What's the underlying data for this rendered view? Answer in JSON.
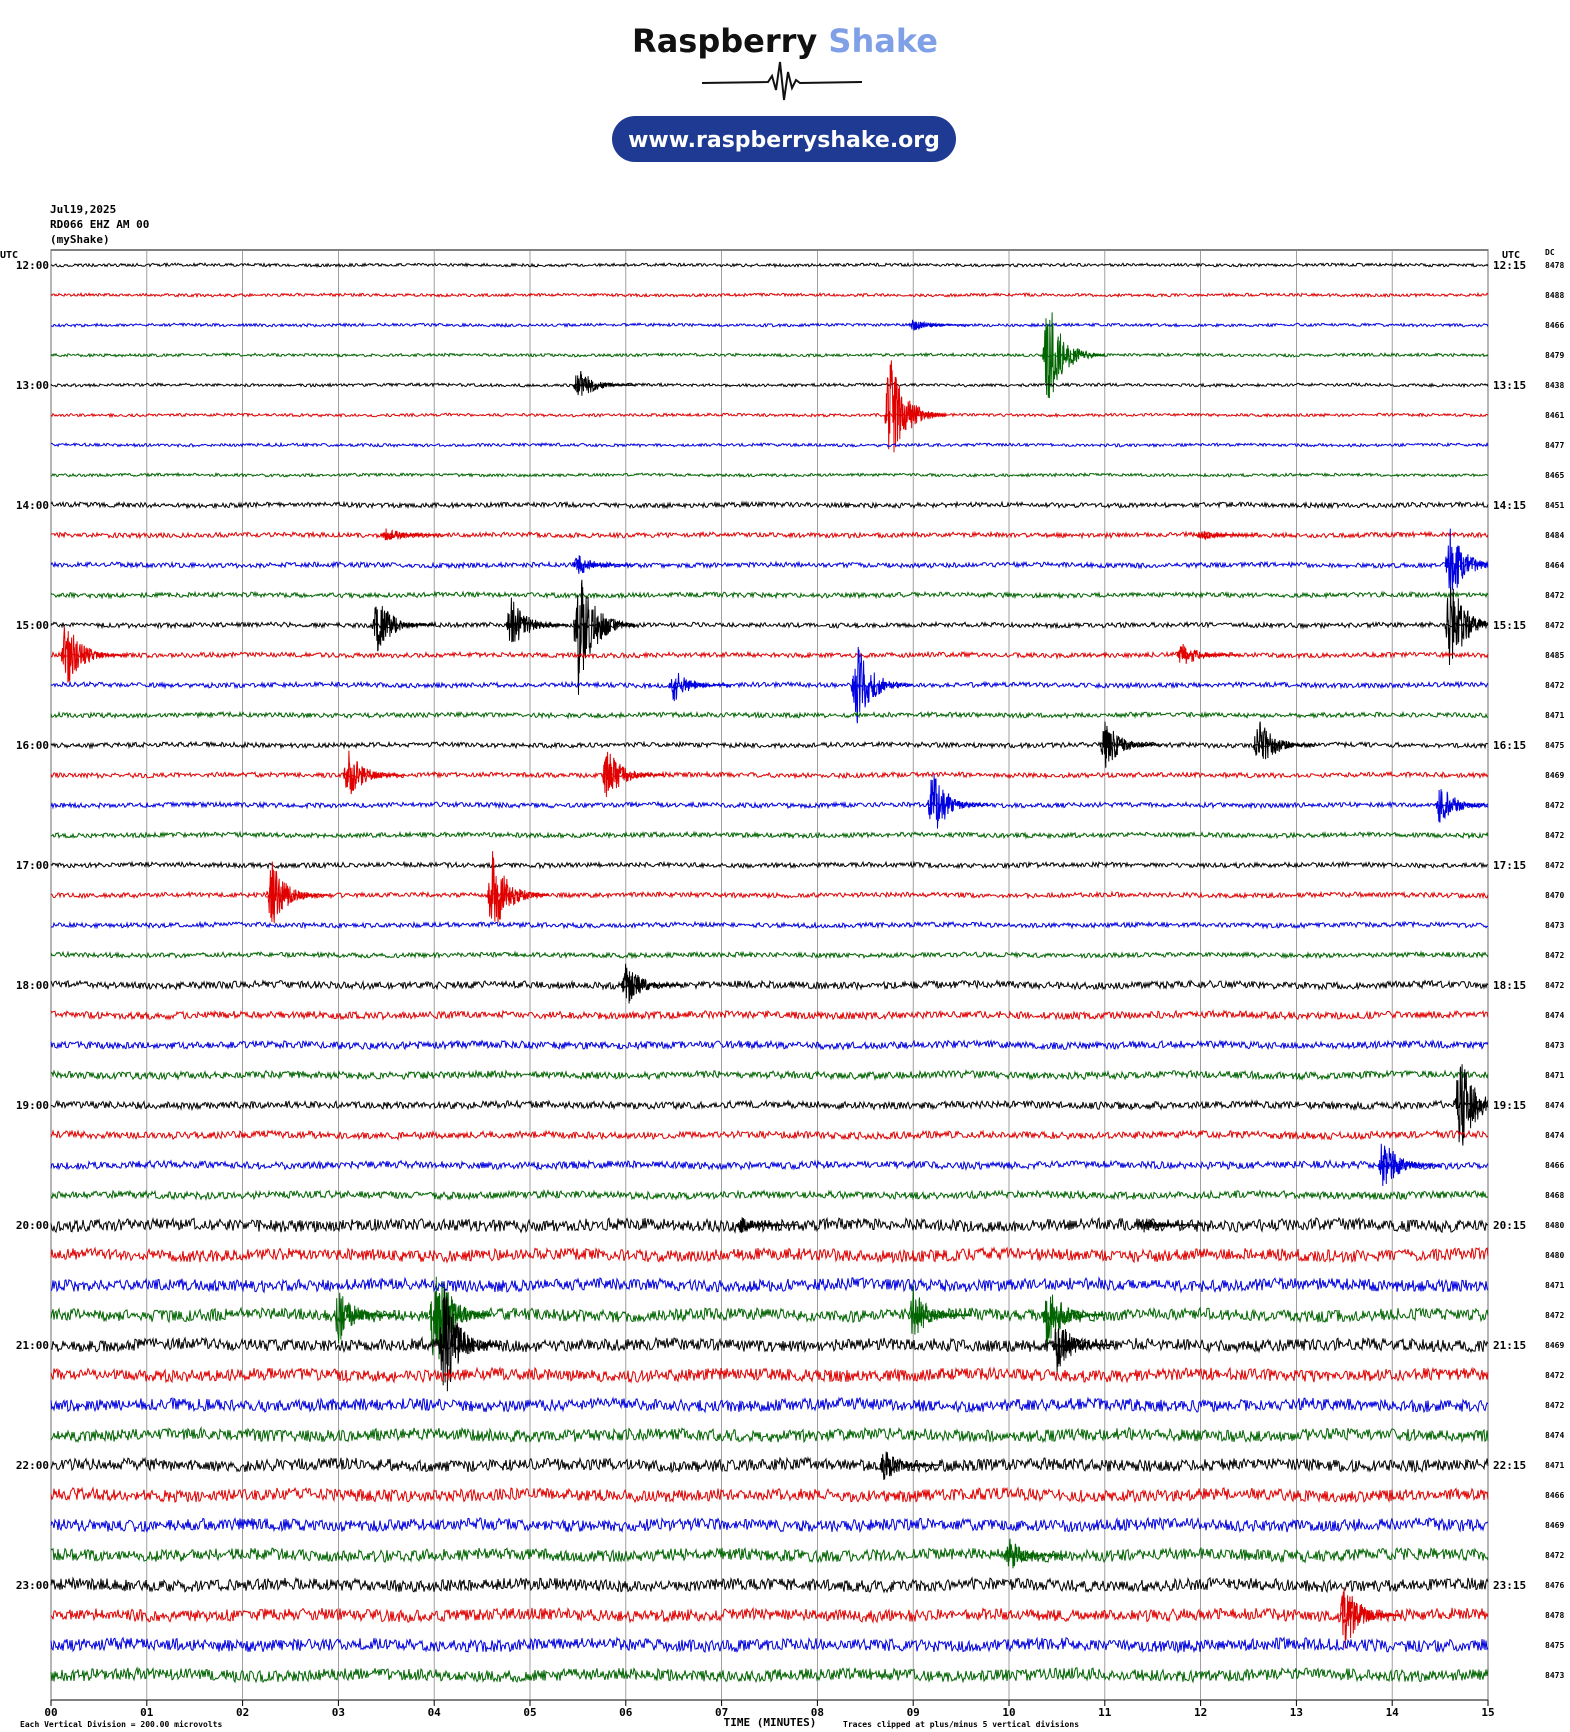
{
  "header": {
    "logo_1": "Raspberry",
    "logo_2": "Shake",
    "url": "www.raspberryshake.org"
  },
  "chart_data": {
    "type": "helicorder",
    "date": "Jul19,2025",
    "station": "RD066 EHZ AM 00",
    "source": "(myShake)",
    "left_axis_label": "UTC",
    "right_axis_label": "UTC",
    "dc_label": "DC",
    "x_label": "TIME (MINUTES)",
    "scale_note": "Each Vertical Division =  200.00 microvolts",
    "clip_note": "Traces clipped at plus/minus 5 vertical divisions",
    "xlim": [
      0,
      15
    ],
    "xticks": [
      {
        "value": 0,
        "label": "00"
      },
      {
        "value": 1,
        "label": "01"
      },
      {
        "value": 2,
        "label": "02"
      },
      {
        "value": 3,
        "label": "03"
      },
      {
        "value": 4,
        "label": "04"
      },
      {
        "value": 5,
        "label": "05"
      },
      {
        "value": 6,
        "label": "06"
      },
      {
        "value": 7,
        "label": "07"
      },
      {
        "value": 8,
        "label": "08"
      },
      {
        "value": 9,
        "label": "09"
      },
      10,
      11,
      12,
      13,
      14,
      15
    ],
    "colors": [
      "#000000",
      "#e00000",
      "#0000e0",
      "#006400"
    ],
    "rows": [
      {
        "left": "12:00",
        "right": "12:15",
        "dc": 8478,
        "noise": 0.05,
        "events": []
      },
      {
        "left": null,
        "right": null,
        "dc": 8488,
        "noise": 0.05,
        "events": []
      },
      {
        "left": null,
        "right": null,
        "dc": 8466,
        "noise": 0.05,
        "events": [
          [
            9.0,
            0.2
          ]
        ]
      },
      {
        "left": null,
        "right": null,
        "dc": 8479,
        "noise": 0.05,
        "events": [
          [
            10.4,
            2
          ]
        ]
      },
      {
        "left": "13:00",
        "right": "13:15",
        "dc": 8438,
        "noise": 0.05,
        "events": [
          [
            5.5,
            0.6
          ]
        ]
      },
      {
        "left": null,
        "right": null,
        "dc": 8461,
        "noise": 0.05,
        "events": [
          [
            8.75,
            2.2
          ]
        ]
      },
      {
        "left": null,
        "right": null,
        "dc": 8477,
        "noise": 0.05,
        "events": []
      },
      {
        "left": null,
        "right": null,
        "dc": 8465,
        "noise": 0.05,
        "events": []
      },
      {
        "left": "14:00",
        "right": "14:15",
        "dc": 8451,
        "noise": 0.08,
        "events": []
      },
      {
        "left": null,
        "right": null,
        "dc": 8484,
        "noise": 0.08,
        "events": [
          [
            3.5,
            0.3
          ],
          [
            12,
            0.2
          ]
        ]
      },
      {
        "left": null,
        "right": null,
        "dc": 8464,
        "noise": 0.08,
        "events": [
          [
            5.5,
            0.4
          ],
          [
            14.6,
            1.3
          ]
        ]
      },
      {
        "left": null,
        "right": null,
        "dc": 8472,
        "noise": 0.08,
        "events": []
      },
      {
        "left": "15:00",
        "right": "15:15",
        "dc": 8472,
        "noise": 0.08,
        "events": [
          [
            3.4,
            1
          ],
          [
            4.8,
            1
          ],
          [
            5.5,
            2.5
          ],
          [
            14.6,
            1.7
          ]
        ]
      },
      {
        "left": null,
        "right": null,
        "dc": 8485,
        "noise": 0.08,
        "events": [
          [
            0.15,
            1.2
          ],
          [
            11.8,
            0.5
          ]
        ]
      },
      {
        "left": null,
        "right": null,
        "dc": 8472,
        "noise": 0.08,
        "events": [
          [
            6.5,
            0.6
          ],
          [
            8.4,
            1.6
          ]
        ]
      },
      {
        "left": null,
        "right": null,
        "dc": 8471,
        "noise": 0.08,
        "events": []
      },
      {
        "left": "16:00",
        "right": "16:15",
        "dc": 8475,
        "noise": 0.08,
        "events": [
          [
            11,
            0.9
          ],
          [
            12.6,
            1
          ]
        ]
      },
      {
        "left": null,
        "right": null,
        "dc": 8469,
        "noise": 0.08,
        "events": [
          [
            3.1,
            0.9
          ],
          [
            5.8,
            1
          ]
        ]
      },
      {
        "left": null,
        "right": null,
        "dc": 8472,
        "noise": 0.08,
        "events": [
          [
            9.2,
            1.2
          ],
          [
            14.5,
            0.8
          ]
        ]
      },
      {
        "left": null,
        "right": null,
        "dc": 8472,
        "noise": 0.08,
        "events": []
      },
      {
        "left": "17:00",
        "right": "17:15",
        "dc": 8472,
        "noise": 0.08,
        "events": []
      },
      {
        "left": null,
        "right": null,
        "dc": 8470,
        "noise": 0.08,
        "events": [
          [
            2.3,
            1.2
          ],
          [
            4.6,
            1.6
          ]
        ]
      },
      {
        "left": null,
        "right": null,
        "dc": 8473,
        "noise": 0.08,
        "events": []
      },
      {
        "left": null,
        "right": null,
        "dc": 8472,
        "noise": 0.08,
        "events": []
      },
      {
        "left": "18:00",
        "right": "18:15",
        "dc": 8472,
        "noise": 0.12,
        "events": [
          [
            6,
            0.8
          ]
        ]
      },
      {
        "left": null,
        "right": null,
        "dc": 8474,
        "noise": 0.12,
        "events": []
      },
      {
        "left": null,
        "right": null,
        "dc": 8473,
        "noise": 0.12,
        "events": []
      },
      {
        "left": null,
        "right": null,
        "dc": 8471,
        "noise": 0.12,
        "events": []
      },
      {
        "left": "19:00",
        "right": "19:15",
        "dc": 8474,
        "noise": 0.12,
        "events": [
          [
            14.7,
            1.8
          ]
        ]
      },
      {
        "left": null,
        "right": null,
        "dc": 8474,
        "noise": 0.12,
        "events": []
      },
      {
        "left": null,
        "right": null,
        "dc": 8466,
        "noise": 0.12,
        "events": [
          [
            13.9,
            1
          ]
        ]
      },
      {
        "left": null,
        "right": null,
        "dc": 8468,
        "noise": 0.12,
        "events": []
      },
      {
        "left": "20:00",
        "right": "20:15",
        "dc": 8480,
        "noise": 0.2,
        "events": [
          [
            7.2,
            0.3
          ],
          [
            11.4,
            0.3
          ]
        ]
      },
      {
        "left": null,
        "right": null,
        "dc": 8480,
        "noise": 0.2,
        "events": []
      },
      {
        "left": null,
        "right": null,
        "dc": 8471,
        "noise": 0.2,
        "events": []
      },
      {
        "left": null,
        "right": null,
        "dc": 8472,
        "noise": 0.2,
        "events": [
          [
            3,
            1
          ],
          [
            4,
            2.2
          ],
          [
            9,
            1
          ],
          [
            10.4,
            1.2
          ]
        ]
      },
      {
        "left": "21:00",
        "right": "21:15",
        "dc": 8469,
        "noise": 0.2,
        "events": [
          [
            4.1,
            2
          ],
          [
            10.5,
            1
          ]
        ]
      },
      {
        "left": null,
        "right": null,
        "dc": 8472,
        "noise": 0.2,
        "events": []
      },
      {
        "left": null,
        "right": null,
        "dc": 8472,
        "noise": 0.2,
        "events": []
      },
      {
        "left": null,
        "right": null,
        "dc": 8474,
        "noise": 0.2,
        "events": []
      },
      {
        "left": "22:00",
        "right": "22:15",
        "dc": 8471,
        "noise": 0.2,
        "events": [
          [
            8.7,
            0.6
          ]
        ]
      },
      {
        "left": null,
        "right": null,
        "dc": 8466,
        "noise": 0.2,
        "events": []
      },
      {
        "left": null,
        "right": null,
        "dc": 8469,
        "noise": 0.2,
        "events": []
      },
      {
        "left": null,
        "right": null,
        "dc": 8472,
        "noise": 0.2,
        "events": [
          [
            10,
            0.6
          ]
        ]
      },
      {
        "left": "23:00",
        "right": "23:15",
        "dc": 8476,
        "noise": 0.2,
        "events": []
      },
      {
        "left": null,
        "right": null,
        "dc": 8478,
        "noise": 0.2,
        "events": [
          [
            13.5,
            1.2
          ]
        ]
      },
      {
        "left": null,
        "right": null,
        "dc": 8475,
        "noise": 0.2,
        "events": []
      },
      {
        "left": null,
        "right": null,
        "dc": 8473,
        "noise": 0.2,
        "events": []
      }
    ]
  }
}
